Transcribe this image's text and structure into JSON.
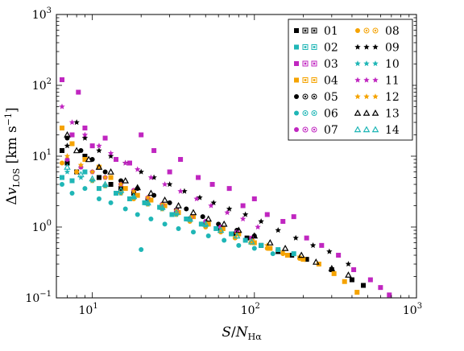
{
  "chart_data": {
    "type": "scatter",
    "xscale": "log",
    "yscale": "log",
    "xlim": [
      6,
      1000
    ],
    "ylim": [
      0.1,
      1000
    ],
    "xlabel": "S/N_Hα",
    "ylabel": "Δv_LOS [km s^-1]",
    "x_ticks": [
      {
        "value": 10,
        "label": "10^1"
      },
      {
        "value": 100,
        "label": "10^2"
      },
      {
        "value": 1000,
        "label": "10^3"
      }
    ],
    "y_ticks": [
      {
        "value": 0.1,
        "label": "10^-1"
      },
      {
        "value": 1,
        "label": "10^0"
      },
      {
        "value": 10,
        "label": "10^1"
      },
      {
        "value": 100,
        "label": "10^2"
      },
      {
        "value": 1000,
        "label": "10^3"
      }
    ],
    "legend_position": "top-right",
    "grid": false,
    "series": [
      {
        "name": "01",
        "color": "#000000",
        "marker": "square-filled",
        "points": [
          [
            6.5,
            12
          ],
          [
            7,
            8
          ],
          [
            8,
            6
          ],
          [
            9,
            10
          ],
          [
            11,
            5
          ],
          [
            13,
            4
          ],
          [
            15,
            3.5
          ],
          [
            18,
            3
          ],
          [
            22,
            2.4
          ],
          [
            27,
            2
          ],
          [
            33,
            1.7
          ],
          [
            40,
            1.3
          ],
          [
            50,
            1.1
          ],
          [
            62,
            0.9
          ],
          [
            75,
            0.8
          ],
          [
            90,
            0.7
          ],
          [
            110,
            0.55
          ],
          [
            140,
            0.45
          ],
          [
            170,
            0.4
          ],
          [
            210,
            0.35
          ],
          [
            300,
            0.25
          ],
          [
            400,
            0.18
          ],
          [
            470,
            0.15
          ]
        ]
      },
      {
        "name": "02",
        "color": "#1fb6b6",
        "marker": "square-filled",
        "points": [
          [
            6.5,
            5
          ],
          [
            7.5,
            4.5
          ],
          [
            9,
            6
          ],
          [
            11,
            3.5
          ],
          [
            14,
            3
          ],
          [
            17,
            2.5
          ],
          [
            21,
            2.2
          ],
          [
            26,
            1.9
          ],
          [
            31,
            1.5
          ],
          [
            38,
            1.3
          ],
          [
            47,
            1.1
          ],
          [
            58,
            0.95
          ],
          [
            72,
            0.8
          ],
          [
            88,
            0.65
          ],
          [
            110,
            0.55
          ],
          [
            140,
            0.48
          ],
          [
            175,
            0.42
          ]
        ]
      },
      {
        "name": "03",
        "color": "#c026c0",
        "marker": "square-filled",
        "points": [
          [
            6.5,
            120
          ],
          [
            8.2,
            80
          ],
          [
            7.5,
            20
          ],
          [
            9,
            25
          ],
          [
            10,
            14
          ],
          [
            12,
            18
          ],
          [
            14,
            9
          ],
          [
            17,
            8
          ],
          [
            20,
            20
          ],
          [
            24,
            12
          ],
          [
            30,
            6
          ],
          [
            35,
            9
          ],
          [
            45,
            5
          ],
          [
            55,
            4
          ],
          [
            70,
            3.5
          ],
          [
            85,
            2
          ],
          [
            100,
            2.5
          ],
          [
            120,
            1.5
          ],
          [
            150,
            1.2
          ],
          [
            175,
            1.4
          ],
          [
            210,
            0.7
          ],
          [
            260,
            0.55
          ],
          [
            330,
            0.4
          ],
          [
            410,
            0.25
          ],
          [
            520,
            0.18
          ],
          [
            600,
            0.14
          ],
          [
            680,
            0.11
          ]
        ]
      },
      {
        "name": "04",
        "color": "#f5a300",
        "marker": "square-filled",
        "points": [
          [
            6.5,
            25
          ],
          [
            7.5,
            15
          ],
          [
            9,
            9
          ],
          [
            11,
            7
          ],
          [
            13,
            5
          ],
          [
            16,
            3.5
          ],
          [
            19,
            2.8
          ],
          [
            23,
            2.4
          ],
          [
            28,
            2
          ],
          [
            34,
            1.6
          ],
          [
            42,
            1.4
          ],
          [
            52,
            1.1
          ],
          [
            64,
            0.95
          ],
          [
            80,
            0.8
          ],
          [
            100,
            0.6
          ],
          [
            125,
            0.5
          ],
          [
            160,
            0.4
          ],
          [
            200,
            0.35
          ],
          [
            250,
            0.3
          ],
          [
            310,
            0.22
          ],
          [
            360,
            0.17
          ],
          [
            430,
            0.12
          ]
        ]
      },
      {
        "name": "05",
        "color": "#000000",
        "marker": "circle-filled",
        "points": [
          [
            7,
            18
          ],
          [
            8.5,
            12
          ],
          [
            10,
            9
          ],
          [
            12,
            6
          ],
          [
            15,
            4.5
          ],
          [
            19,
            3.5
          ],
          [
            24,
            2.8
          ],
          [
            30,
            2.2
          ],
          [
            38,
            1.8
          ],
          [
            48,
            1.4
          ],
          [
            60,
            1.1
          ],
          [
            78,
            0.9
          ],
          [
            100,
            0.75
          ]
        ]
      },
      {
        "name": "06",
        "color": "#1fb6b6",
        "marker": "circle-filled",
        "points": [
          [
            6.5,
            4
          ],
          [
            7.5,
            3
          ],
          [
            9,
            3.5
          ],
          [
            11,
            2.5
          ],
          [
            13,
            2.2
          ],
          [
            16,
            1.8
          ],
          [
            19,
            1.5
          ],
          [
            20,
            0.48
          ],
          [
            23,
            1.3
          ],
          [
            28,
            1.1
          ],
          [
            34,
            0.95
          ],
          [
            42,
            0.85
          ],
          [
            52,
            0.75
          ],
          [
            65,
            0.65
          ],
          [
            80,
            0.55
          ],
          [
            100,
            0.5
          ],
          [
            130,
            0.42
          ]
        ]
      },
      {
        "name": "07",
        "color": "#c026c0",
        "marker": "circle-filled",
        "points": [
          [
            7,
            9
          ],
          [
            8.5,
            7
          ],
          [
            10,
            6
          ],
          [
            12,
            5
          ],
          [
            15,
            4
          ],
          [
            18,
            3.3
          ],
          [
            22,
            2.6
          ],
          [
            27,
            2.1
          ],
          [
            33,
            1.7
          ],
          [
            41,
            1.4
          ],
          [
            50,
            1.2
          ],
          [
            62,
            1
          ],
          [
            78,
            0.85
          ],
          [
            96,
            0.7
          ]
        ]
      },
      {
        "name": "08",
        "color": "#f5a300",
        "marker": "circle-filled",
        "points": [
          [
            6.5,
            8
          ],
          [
            8,
            6
          ],
          [
            10,
            4.5
          ],
          [
            12,
            3.8
          ],
          [
            15,
            3
          ],
          [
            18,
            2.5
          ],
          [
            22,
            2.1
          ],
          [
            27,
            1.8
          ],
          [
            33,
            1.5
          ],
          [
            40,
            1.2
          ],
          [
            50,
            1
          ],
          [
            62,
            0.85
          ],
          [
            76,
            0.7
          ],
          [
            95,
            0.6
          ],
          [
            120,
            0.5
          ],
          [
            150,
            0.42
          ],
          [
            190,
            0.36
          ]
        ]
      },
      {
        "name": "09",
        "color": "#000000",
        "marker": "star",
        "points": [
          [
            7,
            14
          ],
          [
            8,
            30
          ],
          [
            9,
            18
          ],
          [
            11,
            12
          ],
          [
            13,
            10
          ],
          [
            16,
            8
          ],
          [
            20,
            6
          ],
          [
            24,
            5
          ],
          [
            30,
            4
          ],
          [
            37,
            3.2
          ],
          [
            46,
            2.6
          ],
          [
            56,
            2.2
          ],
          [
            70,
            1.8
          ],
          [
            88,
            1.5
          ],
          [
            110,
            1.2
          ],
          [
            140,
            0.9
          ],
          [
            180,
            0.7
          ],
          [
            230,
            0.55
          ],
          [
            290,
            0.45
          ],
          [
            380,
            0.3
          ]
        ]
      },
      {
        "name": "10",
        "color": "#1fb6b6",
        "marker": "star",
        "points": [
          [
            7,
            6
          ],
          [
            8.5,
            5
          ],
          [
            10,
            4.5
          ],
          [
            12,
            3.8
          ],
          [
            15,
            3
          ],
          [
            18,
            2.6
          ],
          [
            22,
            2.1
          ],
          [
            27,
            1.8
          ],
          [
            33,
            1.5
          ],
          [
            40,
            1.25
          ],
          [
            50,
            1.05
          ]
        ]
      },
      {
        "name": "11",
        "color": "#c026c0",
        "marker": "star",
        "points": [
          [
            6.5,
            50
          ],
          [
            7.5,
            30
          ],
          [
            9,
            20
          ],
          [
            11,
            14
          ],
          [
            13,
            11
          ],
          [
            16,
            8
          ],
          [
            19,
            6.5
          ],
          [
            23,
            5
          ],
          [
            28,
            4
          ],
          [
            35,
            3.2
          ],
          [
            44,
            2.5
          ],
          [
            54,
            2
          ],
          [
            68,
            1.6
          ],
          [
            85,
            1.3
          ],
          [
            105,
            1
          ]
        ]
      },
      {
        "name": "12",
        "color": "#f5a300",
        "marker": "star",
        "points": [
          [
            7,
            10
          ],
          [
            8.5,
            7.5
          ],
          [
            10,
            6
          ],
          [
            12,
            5
          ],
          [
            15,
            4
          ],
          [
            18,
            3.2
          ],
          [
            22,
            2.6
          ],
          [
            27,
            2.1
          ],
          [
            33,
            1.7
          ],
          [
            41,
            1.4
          ],
          [
            51,
            1.15
          ],
          [
            63,
            0.95
          ],
          [
            78,
            0.8
          ],
          [
            97,
            0.65
          ],
          [
            120,
            0.55
          ],
          [
            150,
            0.45
          ],
          [
            190,
            0.38
          ]
        ]
      },
      {
        "name": "13",
        "color": "#000000",
        "marker": "triangle-open",
        "points": [
          [
            7,
            20
          ],
          [
            8,
            12
          ],
          [
            9.5,
            9
          ],
          [
            11,
            7
          ],
          [
            13,
            6
          ],
          [
            16,
            4.5
          ],
          [
            19,
            3.6
          ],
          [
            23,
            3
          ],
          [
            28,
            2.4
          ],
          [
            34,
            2
          ],
          [
            42,
            1.6
          ],
          [
            52,
            1.3
          ],
          [
            65,
            1.1
          ],
          [
            80,
            0.9
          ],
          [
            100,
            0.75
          ],
          [
            125,
            0.6
          ],
          [
            155,
            0.5
          ],
          [
            195,
            0.4
          ],
          [
            240,
            0.32
          ],
          [
            300,
            0.26
          ],
          [
            380,
            0.21
          ]
        ]
      },
      {
        "name": "14",
        "color": "#1fb6b6",
        "marker": "triangle-open",
        "points": [
          [
            7,
            7
          ],
          [
            8.5,
            5.5
          ],
          [
            10,
            4.8
          ],
          [
            12,
            4
          ],
          [
            15,
            3.3
          ],
          [
            18,
            2.7
          ],
          [
            22,
            2.2
          ],
          [
            27,
            1.9
          ],
          [
            33,
            1.6
          ],
          [
            40,
            1.3
          ],
          [
            50,
            1.1
          ],
          [
            62,
            0.9
          ],
          [
            78,
            0.75
          ],
          [
            96,
            0.62
          ]
        ]
      }
    ]
  }
}
